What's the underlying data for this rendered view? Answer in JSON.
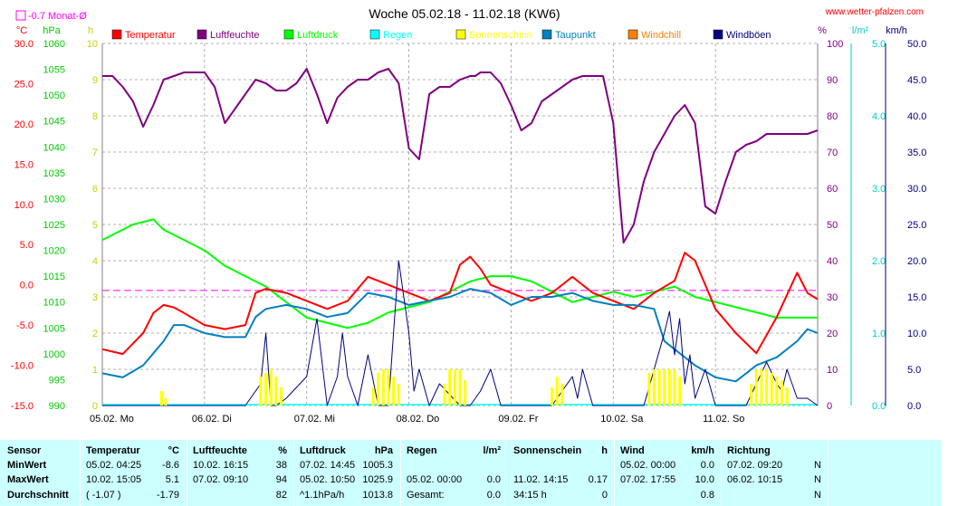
{
  "header": {
    "title": "Woche 05.02.18 - 11.02.18 (KW6)",
    "site": "www.wetter-pfalzen.com",
    "monthly_avg_label": "-0.7 Monat-Ø"
  },
  "legend": [
    {
      "label": "Temperatur",
      "color": "#ff0000"
    },
    {
      "label": "Luftfeuchte",
      "color": "#800080"
    },
    {
      "label": "Luftdruck",
      "color": "#00ff00"
    },
    {
      "label": "Regen",
      "color": "#00ffff"
    },
    {
      "label": "Sonnenschein",
      "color": "#ffff00"
    },
    {
      "label": "Taupunkt",
      "color": "#0080c0"
    },
    {
      "label": "Windchill",
      "color": "#ff8000"
    },
    {
      "label": "Windböen",
      "color": "#000080"
    }
  ],
  "chart_data": {
    "type": "line",
    "title": "Woche 05.02.18 - 11.02.18 (KW6)",
    "x_labels": [
      "05.02. Mo",
      "06.02. Di",
      "07.02. Mi",
      "08.02. Do",
      "09.02. Fr",
      "10.02. Sa",
      "11.02. So"
    ],
    "axes": {
      "temp": {
        "unit": "°C",
        "min": -15,
        "max": 30,
        "ticks": [
          "30.0",
          "25.0",
          "20.0",
          "15.0",
          "10.0",
          "5.0",
          "0.0",
          "-5.0",
          "-10.0",
          "-15.0"
        ]
      },
      "pressure": {
        "unit": "hPa",
        "min": 990,
        "max": 1060,
        "ticks": [
          "1060",
          "1055",
          "1050",
          "1045",
          "1040",
          "1035",
          "1030",
          "1025",
          "1020",
          "1015",
          "1010",
          "1005",
          "1000",
          "995",
          "990"
        ]
      },
      "sun": {
        "unit": "h",
        "min": 0,
        "max": 10,
        "ticks": [
          "10",
          "9",
          "8",
          "7",
          "6",
          "5",
          "4",
          "3",
          "2",
          "1",
          "0"
        ]
      },
      "humidity": {
        "unit": "%",
        "min": 0,
        "max": 100,
        "ticks": [
          "100",
          "90",
          "80",
          "70",
          "60",
          "50",
          "40",
          "30",
          "20",
          "10",
          "0"
        ]
      },
      "rain": {
        "unit": "l/m²",
        "min": 0,
        "max": 5,
        "ticks": [
          "5.0",
          "4.0",
          "3.0",
          "2.0",
          "1.0",
          "0.0"
        ]
      },
      "wind": {
        "unit": "km/h",
        "min": 0,
        "max": 50,
        "ticks": [
          "50.0",
          "45.0",
          "40.0",
          "35.0",
          "30.0",
          "25.0",
          "20.0",
          "15.0",
          "10.0",
          "5.0",
          "0.0"
        ]
      }
    },
    "monthly_avg_temp": -0.7,
    "series": [
      {
        "name": "Luftfeuchte",
        "axis": "humidity",
        "color": "#800080",
        "x": [
          0,
          0.1,
          0.2,
          0.3,
          0.4,
          0.5,
          0.6,
          0.7,
          0.8,
          0.9,
          1.0,
          1.1,
          1.2,
          1.3,
          1.4,
          1.5,
          1.6,
          1.7,
          1.8,
          1.9,
          2.0,
          2.1,
          2.2,
          2.3,
          2.4,
          2.5,
          2.6,
          2.7,
          2.8,
          2.9,
          3.0,
          3.1,
          3.2,
          3.3,
          3.4,
          3.5,
          3.6,
          3.65,
          3.7,
          3.8,
          3.9,
          4.0,
          4.1,
          4.2,
          4.3,
          4.4,
          4.5,
          4.6,
          4.7,
          4.8,
          4.9,
          5.0,
          5.1,
          5.2,
          5.3,
          5.4,
          5.5,
          5.6,
          5.7,
          5.8,
          5.9,
          6.0,
          6.1,
          6.2,
          6.3,
          6.4,
          6.5,
          6.6,
          6.7,
          6.8,
          6.9,
          7.0
        ],
        "y": [
          91,
          91,
          88,
          84,
          77,
          83,
          90,
          91,
          92,
          92,
          92,
          88,
          78,
          82,
          86,
          90,
          89,
          87,
          87,
          89,
          93,
          86,
          78,
          85,
          88,
          90,
          90,
          92,
          93,
          89,
          71,
          68,
          86,
          88,
          88,
          90,
          91,
          91,
          92,
          92,
          89,
          83,
          76,
          78,
          84,
          86,
          88,
          90,
          91,
          91,
          91,
          78,
          45,
          50,
          62,
          70,
          75,
          80,
          83,
          78,
          55,
          53,
          62,
          70,
          72,
          73,
          75,
          75,
          75,
          75,
          75,
          76
        ]
      },
      {
        "name": "Luftdruck",
        "axis": "pressure",
        "color": "#00ff00",
        "x": [
          0,
          0.3,
          0.5,
          0.6,
          0.8,
          1.0,
          1.2,
          1.4,
          1.6,
          1.8,
          2.0,
          2.2,
          2.4,
          2.6,
          2.8,
          3.0,
          3.2,
          3.4,
          3.6,
          3.8,
          4.0,
          4.2,
          4.4,
          4.6,
          4.8,
          5.0,
          5.2,
          5.4,
          5.6,
          5.8,
          6.0,
          6.2,
          6.4,
          6.6,
          6.8,
          7.0
        ],
        "y": [
          1022,
          1025,
          1026,
          1024,
          1022,
          1020,
          1017,
          1015,
          1013,
          1010,
          1007,
          1006,
          1005,
          1006,
          1008,
          1009,
          1010,
          1012,
          1014,
          1015,
          1015,
          1014,
          1012,
          1010,
          1011,
          1012,
          1011,
          1012,
          1013,
          1011,
          1010,
          1009,
          1008,
          1007,
          1007,
          1007
        ]
      },
      {
        "name": "Temperatur",
        "axis": "temp",
        "color": "#ff0000",
        "x": [
          0,
          0.2,
          0.4,
          0.5,
          0.6,
          0.7,
          0.8,
          1.0,
          1.2,
          1.4,
          1.5,
          1.6,
          1.8,
          2.0,
          2.2,
          2.4,
          2.6,
          2.8,
          3.0,
          3.2,
          3.4,
          3.5,
          3.6,
          3.7,
          3.8,
          4.0,
          4.2,
          4.4,
          4.6,
          4.8,
          5.0,
          5.2,
          5.4,
          5.6,
          5.7,
          5.8,
          5.9,
          6.0,
          6.2,
          6.4,
          6.6,
          6.8,
          6.9,
          7.0
        ],
        "y": [
          -8,
          -8.6,
          -6,
          -3.5,
          -2.5,
          -2.8,
          -3.5,
          -5,
          -5.5,
          -5,
          -1,
          -0.5,
          -1,
          -2,
          -3,
          -2,
          1,
          0,
          -1,
          -2,
          -1,
          2.5,
          3.5,
          2,
          0,
          -1,
          -2,
          -1,
          1,
          -1,
          -2,
          -3,
          -1,
          0.5,
          4,
          3,
          0,
          -3,
          -6,
          -8.5,
          -4,
          1.5,
          -1,
          -1.8
        ]
      },
      {
        "name": "Taupunkt",
        "axis": "temp",
        "color": "#0080c0",
        "x": [
          0,
          0.2,
          0.4,
          0.6,
          0.7,
          0.8,
          1.0,
          1.2,
          1.4,
          1.5,
          1.6,
          1.8,
          2.0,
          2.2,
          2.4,
          2.6,
          2.8,
          3.0,
          3.2,
          3.4,
          3.6,
          3.8,
          4.0,
          4.2,
          4.4,
          4.6,
          4.8,
          5.0,
          5.2,
          5.4,
          5.5,
          5.6,
          5.8,
          6.0,
          6.2,
          6.4,
          6.6,
          6.8,
          6.9,
          7.0
        ],
        "y": [
          -11,
          -11.5,
          -10,
          -7,
          -5,
          -5,
          -6,
          -6.5,
          -6.5,
          -4,
          -3,
          -2.5,
          -3,
          -4,
          -3.5,
          -1,
          -1.5,
          -2.5,
          -2,
          -1.5,
          -0.5,
          -1,
          -2.5,
          -1.5,
          -1.5,
          -1,
          -2,
          -2.5,
          -2.5,
          -3,
          -7,
          -8,
          -10,
          -11.5,
          -12,
          -10,
          -9,
          -7,
          -5.5,
          -6
        ]
      },
      {
        "name": "Windböen",
        "axis": "wind",
        "color": "#000080",
        "x": [
          0,
          0.4,
          0.6,
          1.4,
          1.55,
          1.6,
          1.65,
          1.7,
          1.8,
          2.0,
          2.1,
          2.2,
          2.3,
          2.35,
          2.4,
          2.5,
          2.6,
          2.7,
          2.8,
          2.85,
          2.9,
          3.0,
          3.05,
          3.1,
          3.2,
          3.3,
          3.5,
          3.6,
          3.7,
          3.8,
          3.9,
          4.0,
          4.4,
          4.6,
          4.65,
          4.7,
          4.8,
          4.9,
          5.0,
          5.2,
          5.3,
          5.4,
          5.5,
          5.55,
          5.6,
          5.65,
          5.7,
          5.75,
          5.8,
          5.9,
          6.0,
          6.2,
          6.3,
          6.4,
          6.5,
          6.6,
          6.65,
          6.7,
          6.8,
          6.9,
          7.0
        ],
        "y": [
          0,
          0,
          0,
          0,
          3,
          10,
          0,
          0,
          1,
          4,
          12,
          0,
          4,
          10,
          4,
          0,
          7,
          0,
          0,
          10,
          20,
          10,
          2,
          5,
          0,
          3,
          0,
          0,
          2,
          5,
          0,
          0,
          0,
          4,
          1,
          5,
          0,
          0,
          0,
          0,
          0,
          5,
          10,
          13,
          7,
          12,
          3,
          7,
          1,
          5,
          0,
          0,
          0,
          3,
          6,
          3,
          2,
          5,
          1,
          1,
          0
        ]
      },
      {
        "name": "Sonnenschein",
        "axis": "sun",
        "color": "#ffff00",
        "x": [
          0.58,
          0.62,
          1.55,
          1.6,
          1.65,
          1.7,
          1.75,
          2.65,
          2.7,
          2.75,
          2.8,
          2.85,
          2.9,
          3.35,
          3.4,
          3.45,
          3.5,
          3.55,
          4.4,
          4.45,
          4.5,
          5.35,
          5.4,
          5.45,
          5.5,
          5.55,
          5.6,
          5.65,
          6.35,
          6.4,
          6.45,
          6.5,
          6.55,
          6.6,
          6.65,
          6.7
        ],
        "y": [
          0.4,
          0.2,
          0.8,
          0.9,
          1.0,
          0.8,
          0.5,
          0.5,
          0.9,
          1.0,
          1.0,
          0.8,
          0.6,
          0.6,
          1.0,
          1.0,
          1.0,
          0.7,
          0.5,
          0.8,
          0.6,
          0.9,
          1.0,
          1.0,
          1.0,
          1.0,
          1.0,
          0.8,
          0.6,
          1.0,
          1.0,
          1.0,
          0.9,
          0.8,
          0.7,
          0.5
        ]
      }
    ]
  },
  "stats": {
    "headers": [
      "Sensor",
      "Temperatur",
      "°C",
      "Luftfeuchte",
      "%",
      "Luftdruck",
      "hPa",
      "Regen",
      "l/m²",
      "Sonnenschein",
      "h",
      "Wind",
      "km/h",
      "Richtung"
    ],
    "rows": [
      {
        "label": "MinWert",
        "temp": "05.02.  04:25",
        "temp_v": "-8.6",
        "hum": "10.02.  16:15",
        "hum_v": "38",
        "pres": "07.02.  14:45",
        "pres_v": "1005.3",
        "rain": "",
        "rain_v": "",
        "sun": "",
        "sun_v": "",
        "wind": "05.02.  00:00",
        "wind_v": "0.0",
        "dir": "07.02.  09:20",
        "dir_v": "N"
      },
      {
        "label": "MaxWert",
        "temp": "10.02.  15:05",
        "temp_v": "5.1",
        "hum": "07.02.  09:10",
        "hum_v": "94",
        "pres": "05.02.  10:50",
        "pres_v": "1025.9",
        "rain": "05.02.  00:00",
        "rain_v": "0.0",
        "sun": "11.02.  14:15",
        "sun_v": "0.17",
        "wind": "07.02.  17:55",
        "wind_v": "10.0",
        "dir": "06.02.  10:15",
        "dir_v": "N"
      },
      {
        "label": "Durchschnitt",
        "temp": "( -1.07 )",
        "temp_v": "-1.79",
        "hum": "",
        "hum_v": "82",
        "pres": "^1.1hPa/h",
        "pres_v": "1013.8",
        "rain": "Gesamt:",
        "rain_v": "0.0",
        "sun": "34:15 h",
        "sun_v": "0",
        "wind": "",
        "wind_v": "0.8",
        "dir": "",
        "dir_v": "N"
      }
    ]
  }
}
